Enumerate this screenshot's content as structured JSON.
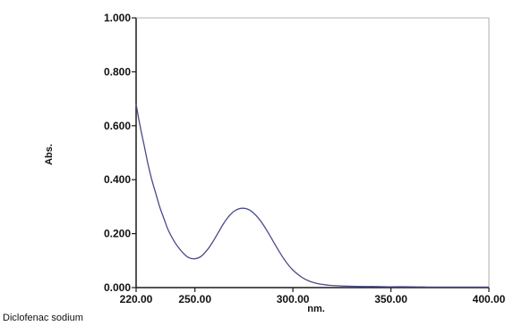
{
  "chart_data": {
    "type": "line",
    "title": "",
    "caption": "Diclofenac sodium",
    "xlabel": "nm.",
    "ylabel": "Abs.",
    "xlim": [
      220,
      400
    ],
    "ylim": [
      0,
      1
    ],
    "x_ticks": [
      "220.00",
      "250.00",
      "300.00",
      "350.00",
      "400.00"
    ],
    "y_ticks": [
      "0.000",
      "0.200",
      "0.400",
      "0.600",
      "0.800",
      "1.000"
    ],
    "x_tick_values": [
      220,
      250,
      300,
      350,
      400
    ],
    "y_tick_values": [
      0,
      0.2,
      0.4,
      0.6,
      0.8,
      1.0
    ],
    "grid": false,
    "line_color": "#4a4a8c",
    "series": [
      {
        "x": [
          220,
          222,
          224,
          226,
          228,
          230,
          232,
          234,
          236,
          238,
          240,
          242,
          244,
          246,
          248,
          250,
          252,
          254,
          256,
          258,
          260,
          262,
          264,
          266,
          268,
          270,
          272,
          274,
          276,
          278,
          280,
          282,
          284,
          286,
          288,
          290,
          292,
          294,
          296,
          298,
          300,
          302,
          304,
          306,
          308,
          310,
          312,
          314,
          316,
          318,
          320,
          325,
          330,
          335,
          340,
          350,
          360,
          370,
          380,
          390,
          400
        ],
        "values": [
          0.68,
          0.6,
          0.53,
          0.46,
          0.4,
          0.35,
          0.3,
          0.26,
          0.22,
          0.19,
          0.165,
          0.145,
          0.128,
          0.115,
          0.108,
          0.107,
          0.111,
          0.121,
          0.137,
          0.157,
          0.18,
          0.205,
          0.23,
          0.252,
          0.27,
          0.283,
          0.291,
          0.294,
          0.293,
          0.287,
          0.276,
          0.261,
          0.242,
          0.22,
          0.196,
          0.171,
          0.146,
          0.122,
          0.1,
          0.081,
          0.065,
          0.052,
          0.041,
          0.032,
          0.025,
          0.02,
          0.016,
          0.013,
          0.011,
          0.009,
          0.008,
          0.006,
          0.005,
          0.004,
          0.004,
          0.003,
          0.003,
          0.002,
          0.002,
          0.002,
          0.002
        ]
      }
    ]
  }
}
